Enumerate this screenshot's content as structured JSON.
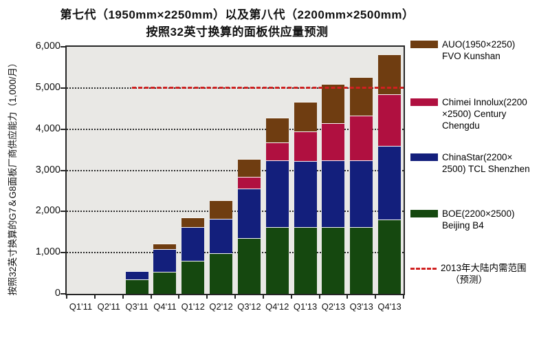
{
  "title": {
    "line1": "第七代（1950mm×2250mm）以及第八代（2200mm×2500mm）",
    "line2": "按照32英寸换算的面板供应量预测"
  },
  "y_axis": {
    "label": "按照32英寸换算的G7＆G8面板厂商供应能力（1,000/月）",
    "tick_labels": [
      "0",
      "1,000",
      "2,000",
      "3,000",
      "4,000",
      "5,000",
      "6,000"
    ]
  },
  "colors": {
    "boe_green": "#15480f",
    "chinastar_navy": "#131f7c",
    "chimei_crimson": "#b01040",
    "auo_brown": "#6f3d11",
    "reference_red": "#d02020",
    "plot_background": "#e9e8e5",
    "axis_border": "#262626"
  },
  "chart_data": {
    "type": "bar",
    "stacked": true,
    "title": "第七代（1950mm×2250mm）以及第八代（2200mm×2500mm）按照32英寸换算的面板供应量预测",
    "ylabel": "按照32英寸换算的G7＆G8面板厂商供应能力（1,000/月）",
    "xlabel": "",
    "ylim": [
      0,
      6000
    ],
    "grid": "horizontal-dotted",
    "legend_position": "right",
    "categories": [
      "Q1'11",
      "Q2'11",
      "Q3'11",
      "Q4'11",
      "Q1'12",
      "Q2'12",
      "Q3'12",
      "Q4'12",
      "Q1'13",
      "Q2'13",
      "Q3'13",
      "Q4'13"
    ],
    "series": [
      {
        "name": "BOE(2200×2500) Beijing B4",
        "color": "#15480f",
        "values": [
          0,
          0,
          350,
          530,
          800,
          990,
          1350,
          1620,
          1620,
          1620,
          1620,
          1800
        ]
      },
      {
        "name": "ChinaStar(2200×2500) TCL Shenzhen",
        "color": "#131f7c",
        "values": [
          0,
          0,
          200,
          550,
          820,
          830,
          1210,
          1630,
          1600,
          1615,
          1615,
          1800
        ]
      },
      {
        "name": "Chimei Innolux(2200×2500) Century Chengdu",
        "color": "#b01040",
        "values": [
          0,
          0,
          0,
          0,
          0,
          0,
          280,
          420,
          720,
          915,
          1095,
          1255
        ]
      },
      {
        "name": "AUO(1950×2250) FVO Kunshan",
        "color": "#6f3d11",
        "values": [
          0,
          0,
          0,
          140,
          230,
          450,
          440,
          605,
          730,
          955,
          940,
          960
        ]
      }
    ],
    "reference_line": {
      "value": 5000,
      "label": "2013年大陆内需范围（预测）",
      "color": "#d02020",
      "style": "dashed"
    }
  },
  "legend": {
    "items": [
      {
        "color": "#6f3d11",
        "style": "solid",
        "lines": [
          "AUO(1950×2250)",
          "FVO Kunshan"
        ]
      },
      {
        "color": "#b01040",
        "style": "solid",
        "lines": [
          "Chimei Innolux(2200",
          "×2500) Century",
          "Chengdu"
        ]
      },
      {
        "color": "#131f7c",
        "style": "solid",
        "lines": [
          "ChinaStar(2200×",
          "2500) TCL Shenzhen"
        ]
      },
      {
        "color": "#15480f",
        "style": "solid",
        "lines": [
          "BOE(2200×2500)",
          "Beijing B4"
        ]
      },
      {
        "color": "#d02020",
        "style": "dashed-line",
        "lines": [
          "2013年大陆内需范围",
          "（预测）"
        ]
      }
    ]
  }
}
